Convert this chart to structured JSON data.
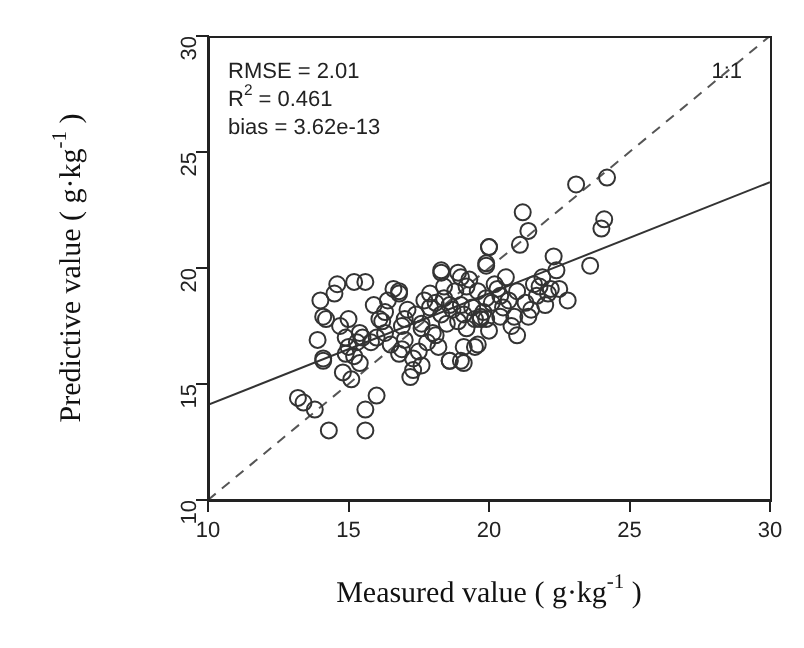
{
  "chart_data": {
    "type": "scatter",
    "xlabel": "Measured value ( g·kg$^{-1}$ )",
    "ylabel": "Predictive value ( g·kg$^{-1}$ )",
    "xlim": [
      10,
      30
    ],
    "ylim": [
      10,
      30
    ],
    "xticks": [
      10,
      15,
      20,
      25,
      30
    ],
    "yticks": [
      10,
      15,
      20,
      25,
      30
    ],
    "grid": false,
    "legend": false,
    "marker": "circle",
    "annotations": [
      "RMSE = 2.01",
      "R$^{2}$ = 0.461",
      "bias = 3.62e-13"
    ],
    "series": [
      {
        "color": "#333333",
        "x": [
          13.2,
          13.4,
          13.8,
          14.3,
          15.6,
          13.9,
          14.1,
          14.1,
          14.0,
          14.1,
          14.2,
          14.6,
          14.5,
          15.2,
          15.6,
          14.7,
          14.9,
          15.0,
          15.2,
          15.4,
          14.8,
          15.1,
          15.3,
          15.0,
          14.9,
          15.4,
          16.0,
          15.6,
          15.9,
          16.1,
          16.3,
          16.5,
          16.8,
          16.0,
          16.3,
          16.6,
          16.8,
          17.2,
          17.3,
          16.9,
          17.1,
          17.4,
          17.6,
          17.9,
          18.1,
          18.3,
          18.5,
          18.7,
          17.0,
          17.5,
          17.8,
          18.2,
          18.6,
          17.7,
          18.0,
          18.4,
          18.6,
          19.0,
          19.5,
          18.3,
          18.9,
          19.9,
          20.0,
          18.8,
          19.0,
          19.3,
          19.6,
          19.9,
          20.2,
          20.4,
          19.1,
          19.4,
          19.8,
          20.1,
          20.3,
          18.9,
          19.2,
          19.7,
          20.0,
          23.1,
          24.2,
          21.2,
          21.4,
          21.1,
          24.1,
          24.0,
          23.6,
          20.0,
          19.9,
          22.3,
          22.4,
          22.8,
          22.5,
          18.3,
          19.0,
          19.2,
          20.6,
          21.6,
          21.8,
          22.1,
          20.4,
          20.9,
          21.4,
          22.0,
          19.5,
          19.7,
          19.9,
          19.6,
          19.1,
          18.6,
          19.1,
          16.8,
          17.0,
          20.7,
          21.0,
          21.3,
          21.5,
          20.5,
          20.8,
          21.0,
          21.7,
          15.5,
          15.8,
          16.2,
          16.4,
          17.6,
          17.9,
          18.1,
          18.4,
          16.9,
          17.3,
          17.6,
          21.9,
          22.2
        ],
        "values": [
          14.4,
          14.2,
          13.9,
          13.0,
          13.0,
          16.9,
          16.1,
          16.0,
          18.6,
          17.9,
          17.8,
          19.3,
          18.9,
          19.4,
          19.4,
          17.5,
          17.0,
          16.6,
          16.2,
          15.9,
          15.5,
          15.2,
          16.8,
          17.8,
          16.3,
          17.2,
          14.5,
          13.9,
          18.4,
          17.8,
          17.2,
          16.7,
          16.3,
          17.0,
          18.1,
          19.1,
          19.0,
          15.3,
          15.6,
          17.5,
          18.2,
          18.0,
          17.4,
          18.3,
          18.5,
          18.0,
          17.6,
          18.2,
          16.9,
          16.4,
          16.8,
          16.6,
          16.0,
          18.6,
          17.2,
          18.7,
          18.4,
          16.0,
          16.6,
          19.9,
          19.8,
          20.1,
          20.9,
          19.0,
          18.4,
          19.5,
          19.0,
          18.7,
          19.3,
          18.8,
          18.0,
          18.3,
          18.1,
          18.5,
          19.1,
          17.7,
          17.4,
          17.9,
          17.3,
          23.6,
          23.9,
          22.4,
          21.6,
          21.0,
          22.1,
          21.7,
          20.1,
          20.9,
          20.2,
          20.5,
          19.9,
          18.6,
          19.1,
          19.8,
          19.6,
          19.2,
          19.6,
          19.3,
          19.2,
          18.9,
          17.9,
          17.9,
          17.9,
          18.4,
          17.8,
          17.8,
          17.8,
          16.7,
          16.6,
          16.0,
          15.9,
          18.9,
          17.8,
          18.6,
          19.0,
          18.5,
          18.2,
          18.3,
          17.5,
          17.1,
          18.8,
          17.0,
          16.8,
          17.7,
          18.6,
          17.6,
          18.9,
          17.1,
          19.2,
          16.5,
          16.1,
          15.8,
          19.6,
          19.1
        ]
      },
      {
        "type": "line",
        "color": "#333333",
        "x": [
          10,
          30
        ],
        "values": [
          14.1,
          23.7
        ],
        "line_style": "solid",
        "marker": "none"
      },
      {
        "type": "line",
        "name": "1:1",
        "color": "#555555",
        "x": [
          10,
          30
        ],
        "values": [
          10,
          30
        ],
        "line_style": "dashed",
        "marker": "none"
      }
    ]
  }
}
